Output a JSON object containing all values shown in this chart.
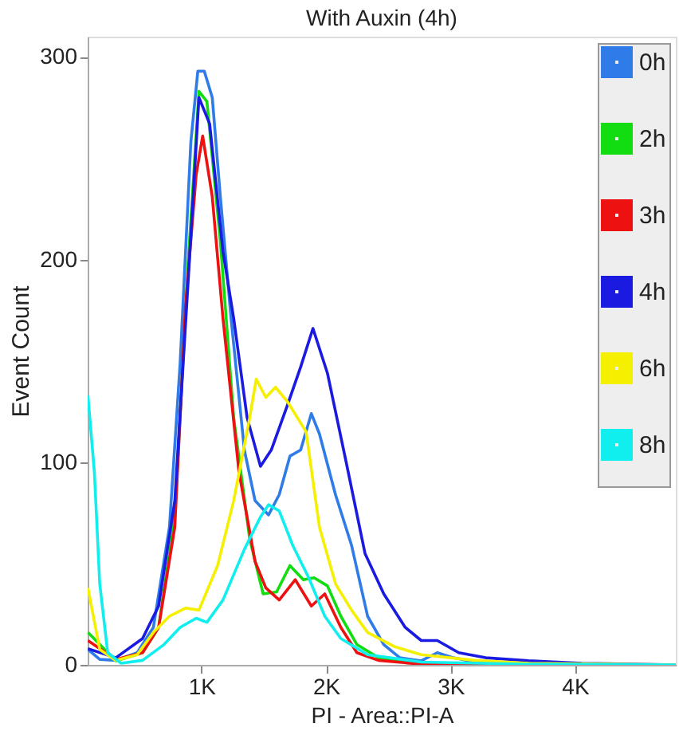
{
  "chart_data": {
    "type": "line",
    "title": "With Auxin (4h)",
    "xlabel": "PI - Area::PI-A",
    "ylabel": "Event Count",
    "xlim": [
      85,
      4810
    ],
    "ylim": [
      0,
      310
    ],
    "xticks": [
      {
        "value": 1000,
        "label": "1K"
      },
      {
        "value": 2000,
        "label": "2K"
      },
      {
        "value": 3000,
        "label": "3K"
      },
      {
        "value": 4000,
        "label": "4K"
      }
    ],
    "yticks": [
      0,
      100,
      200,
      300
    ],
    "grid": false,
    "legend": "top right",
    "marker": "none",
    "line_style": "solid",
    "series": [
      {
        "name": "0h",
        "color": "#2f7be8",
        "x": [
          87,
          182,
          311,
          483,
          613,
          742,
          828,
          914,
          970,
          1022,
          1086,
          1151,
          1237,
          1344,
          1430,
          1538,
          1624,
          1710,
          1796,
          1882,
          1947,
          2076,
          2205,
          2334,
          2464,
          2593,
          2765,
          2894,
          3023,
          3196,
          3626,
          4810
        ],
        "values": [
          7.6,
          2.7,
          2.2,
          6,
          18.5,
          68,
          149,
          258,
          293,
          293,
          280,
          231,
          171,
          106,
          81,
          74,
          84,
          103,
          106,
          124,
          114,
          84,
          59,
          24,
          10,
          3.5,
          2,
          6,
          3.5,
          1.4,
          0.3,
          0
        ]
      },
      {
        "name": "2h",
        "color": "#11dd11",
        "x": [
          87,
          311,
          526,
          655,
          785,
          893,
          979,
          1043,
          1151,
          1258,
          1387,
          1495,
          1603,
          1710,
          1818,
          1904,
          2011,
          2119,
          2248,
          2421,
          2765,
          4810
        ],
        "values": [
          16,
          2,
          6,
          18.5,
          73,
          199,
          283,
          278,
          209,
          122,
          62,
          35,
          36,
          49,
          42,
          43,
          39,
          24,
          10,
          3.5,
          0.8,
          0
        ]
      },
      {
        "name": "3h",
        "color": "#ee1111",
        "x": [
          87,
          311,
          526,
          655,
          785,
          871,
          957,
          1009,
          1086,
          1172,
          1301,
          1430,
          1516,
          1624,
          1753,
          1882,
          1990,
          2119,
          2248,
          2421,
          2765,
          4810
        ],
        "values": [
          12,
          2.7,
          6,
          18.5,
          68,
          177,
          242,
          261,
          231,
          171,
          95,
          51,
          38,
          32,
          42,
          29,
          35,
          18.5,
          6,
          2.2,
          0.3,
          0
        ]
      },
      {
        "name": "4h",
        "color": "#1a1ae0",
        "x": [
          87,
          311,
          526,
          655,
          785,
          893,
          979,
          1065,
          1172,
          1258,
          1366,
          1473,
          1560,
          1689,
          1796,
          1895,
          2011,
          2162,
          2313,
          2464,
          2636,
          2765,
          2894,
          3066,
          3282,
          3626,
          4056,
          4810
        ],
        "values": [
          8,
          3.5,
          13,
          29,
          81,
          190,
          280,
          267,
          204,
          171,
          122,
          98,
          106,
          128,
          147,
          166,
          144,
          100,
          55,
          35,
          18.5,
          12,
          12,
          6,
          3.5,
          2,
          0.8,
          0
        ]
      },
      {
        "name": "6h",
        "color": "#f5f000",
        "x": [
          87,
          182,
          311,
          483,
          613,
          742,
          871,
          979,
          1129,
          1258,
          1387,
          1439,
          1516,
          1594,
          1689,
          1840,
          1947,
          2076,
          2205,
          2334,
          2550,
          2765,
          3196,
          3626,
          4810
        ],
        "values": [
          38,
          7.6,
          2.2,
          5,
          16,
          24,
          28,
          27,
          49,
          81,
          122,
          141,
          132,
          137,
          130,
          115,
          68,
          40,
          27,
          16,
          9,
          5,
          2.2,
          0.8,
          0
        ]
      },
      {
        "name": "8h",
        "color": "#11eeee",
        "x": [
          87,
          139,
          182,
          246,
          354,
          526,
          698,
          828,
          957,
          1043,
          1172,
          1344,
          1473,
          1538,
          1624,
          1732,
          1861,
          1990,
          2119,
          2334,
          2765,
          3626,
          4810
        ],
        "values": [
          133,
          95,
          40,
          6,
          0.8,
          2.2,
          10,
          18.5,
          23,
          21,
          32,
          57,
          73,
          79,
          76,
          59,
          43,
          24,
          13,
          5,
          1.4,
          0.3,
          0
        ]
      }
    ]
  }
}
